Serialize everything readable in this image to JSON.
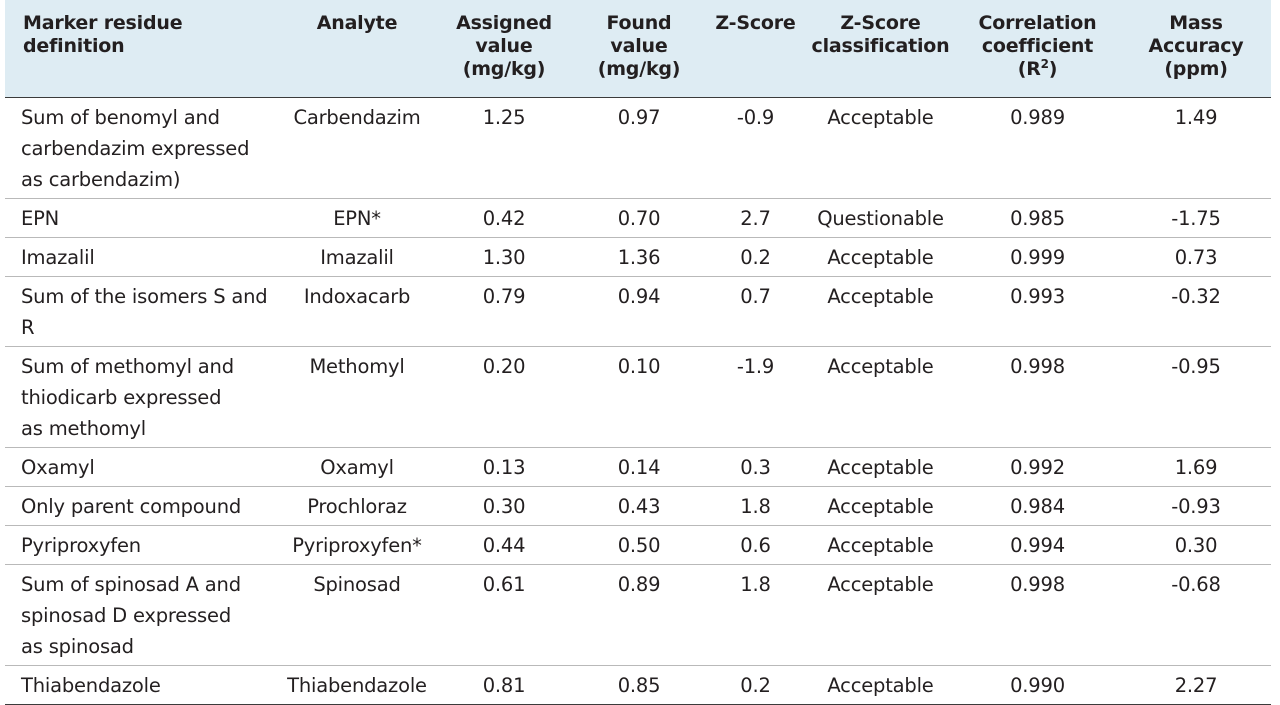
{
  "headers": {
    "marker": "Marker residue definition",
    "analyte": "Analyte",
    "assigned_l1": "Assigned",
    "assigned_l2": "value",
    "assigned_l3": "(mg/kg)",
    "found_l1": "Found",
    "found_l2": "value",
    "found_l3": "(mg/kg)",
    "zscore": "Z-Score",
    "zclass_l1": "Z-Score",
    "zclass_l2": "classification",
    "corr_l1": "Correlation",
    "corr_l2": "coefficient",
    "corr_l3_pre": "(R",
    "corr_l3_sup": "2",
    "corr_l3_post": ")",
    "mass_l1": "Mass",
    "mass_l2": "Accuracy",
    "mass_l3": "(ppm)"
  },
  "rows": [
    {
      "marker": [
        "Sum of benomyl and",
        "carbendazim expressed",
        "as carbendazim)"
      ],
      "analyte": "Carbendazim",
      "assigned": "1.25",
      "found": "0.97",
      "zscore": "-0.9",
      "classification": "Acceptable",
      "correlation": "0.989",
      "mass_accuracy": "1.49"
    },
    {
      "marker": [
        "EPN"
      ],
      "analyte": "EPN*",
      "assigned": "0.42",
      "found": "0.70",
      "zscore": "2.7",
      "classification": "Questionable",
      "correlation": "0.985",
      "mass_accuracy": "-1.75"
    },
    {
      "marker": [
        "Imazalil"
      ],
      "analyte": "Imazalil",
      "assigned": "1.30",
      "found": "1.36",
      "zscore": "0.2",
      "classification": "Acceptable",
      "correlation": "0.999",
      "mass_accuracy": "0.73"
    },
    {
      "marker": [
        "Sum of the isomers S and R"
      ],
      "analyte": "Indoxacarb",
      "assigned": "0.79",
      "found": "0.94",
      "zscore": "0.7",
      "classification": "Acceptable",
      "correlation": "0.993",
      "mass_accuracy": "-0.32"
    },
    {
      "marker": [
        "Sum of methomyl and",
        "thiodicarb expressed",
        "as methomyl"
      ],
      "analyte": "Methomyl",
      "assigned": "0.20",
      "found": "0.10",
      "zscore": "-1.9",
      "classification": "Acceptable",
      "correlation": "0.998",
      "mass_accuracy": "-0.95"
    },
    {
      "marker": [
        "Oxamyl"
      ],
      "analyte": "Oxamyl",
      "assigned": "0.13",
      "found": "0.14",
      "zscore": "0.3",
      "classification": "Acceptable",
      "correlation": "0.992",
      "mass_accuracy": "1.69"
    },
    {
      "marker": [
        "Only parent compound"
      ],
      "analyte": "Prochloraz",
      "assigned": "0.30",
      "found": "0.43",
      "zscore": "1.8",
      "classification": "Acceptable",
      "correlation": "0.984",
      "mass_accuracy": "-0.93"
    },
    {
      "marker": [
        "Pyriproxyfen"
      ],
      "analyte": "Pyriproxyfen*",
      "assigned": "0.44",
      "found": "0.50",
      "zscore": "0.6",
      "classification": "Acceptable",
      "correlation": "0.994",
      "mass_accuracy": "0.30"
    },
    {
      "marker": [
        "Sum of spinosad A and",
        "spinosad D expressed",
        "as spinosad"
      ],
      "analyte": "Spinosad",
      "assigned": "0.61",
      "found": "0.89",
      "zscore": "1.8",
      "classification": "Acceptable",
      "correlation": "0.998",
      "mass_accuracy": "-0.68"
    },
    {
      "marker": [
        "Thiabendazole"
      ],
      "analyte": "Thiabendazole",
      "assigned": "0.81",
      "found": "0.85",
      "zscore": "0.2",
      "classification": "Acceptable",
      "correlation": "0.990",
      "mass_accuracy": "2.27"
    }
  ]
}
